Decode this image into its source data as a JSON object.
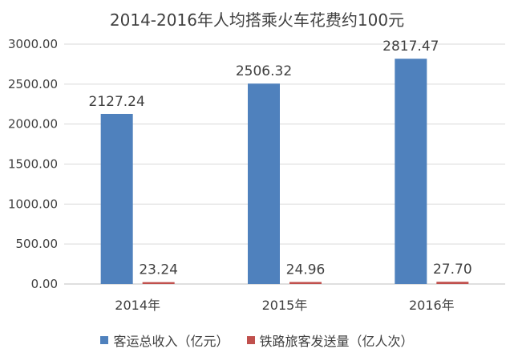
{
  "chart_data": {
    "type": "bar",
    "title": "2014-2016年人均搭乘火车花费约100元",
    "categories": [
      "2014年",
      "2015年",
      "2016年"
    ],
    "series": [
      {
        "name": "客运总收入（亿元）",
        "color": "#4F81BD",
        "values": [
          2127.24,
          2506.32,
          2817.47
        ],
        "labels": [
          "2127.24",
          "2506.32",
          "2817.47"
        ]
      },
      {
        "name": "铁路旅客发送量（亿人次）",
        "color": "#C0504D",
        "values": [
          23.24,
          24.96,
          27.7
        ],
        "labels": [
          "23.24",
          "24.96",
          "27.70"
        ]
      }
    ],
    "ylim": [
      0,
      3000
    ],
    "yticks": [
      "0.00",
      "500.00",
      "1000.00",
      "1500.00",
      "2000.00",
      "2500.00",
      "3000.00"
    ],
    "grid": true,
    "legend_position": "bottom"
  }
}
